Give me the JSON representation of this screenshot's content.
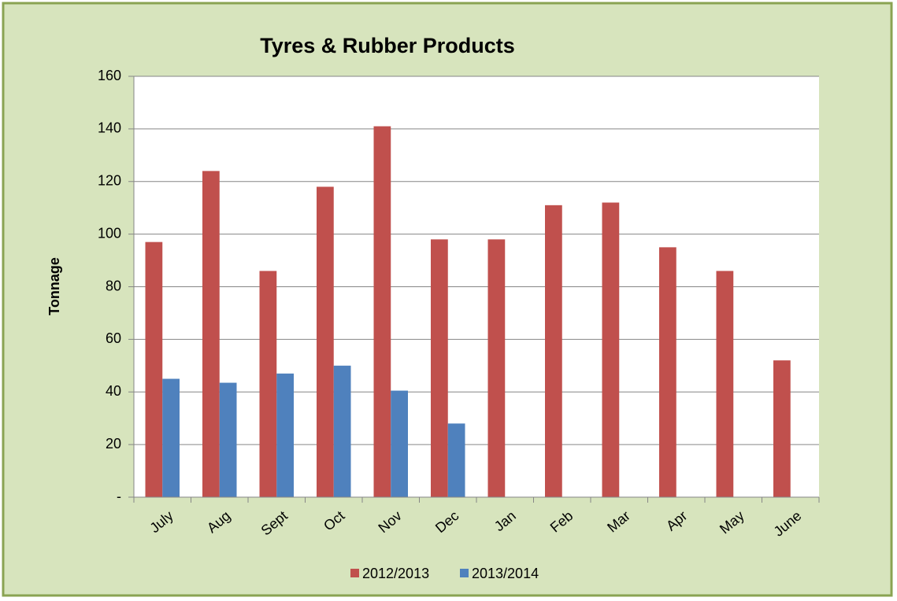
{
  "chart_data": {
    "type": "bar",
    "title": "Tyres & Rubber Products",
    "y_label": "Tonnage",
    "categories": [
      "July",
      "Aug",
      "Sept",
      "Oct",
      "Nov",
      "Dec",
      "Jan",
      "Feb",
      "Mar",
      "Apr",
      "May",
      "June"
    ],
    "series": [
      {
        "name": "2012/2013",
        "color": "#c0504d",
        "values": [
          97,
          124,
          86,
          118,
          141,
          98,
          98,
          111,
          112,
          95,
          86,
          52
        ]
      },
      {
        "name": "2013/2014",
        "color": "#4f81bd",
        "values": [
          45,
          43.5,
          47,
          50,
          40.5,
          28,
          null,
          null,
          null,
          null,
          null,
          null
        ]
      }
    ],
    "ylim": [
      0,
      160
    ],
    "yticks": [
      {
        "value": 0,
        "label": "-"
      },
      20,
      40,
      60,
      80,
      100,
      120,
      140,
      160
    ],
    "grid": true,
    "legend": "bottom"
  }
}
